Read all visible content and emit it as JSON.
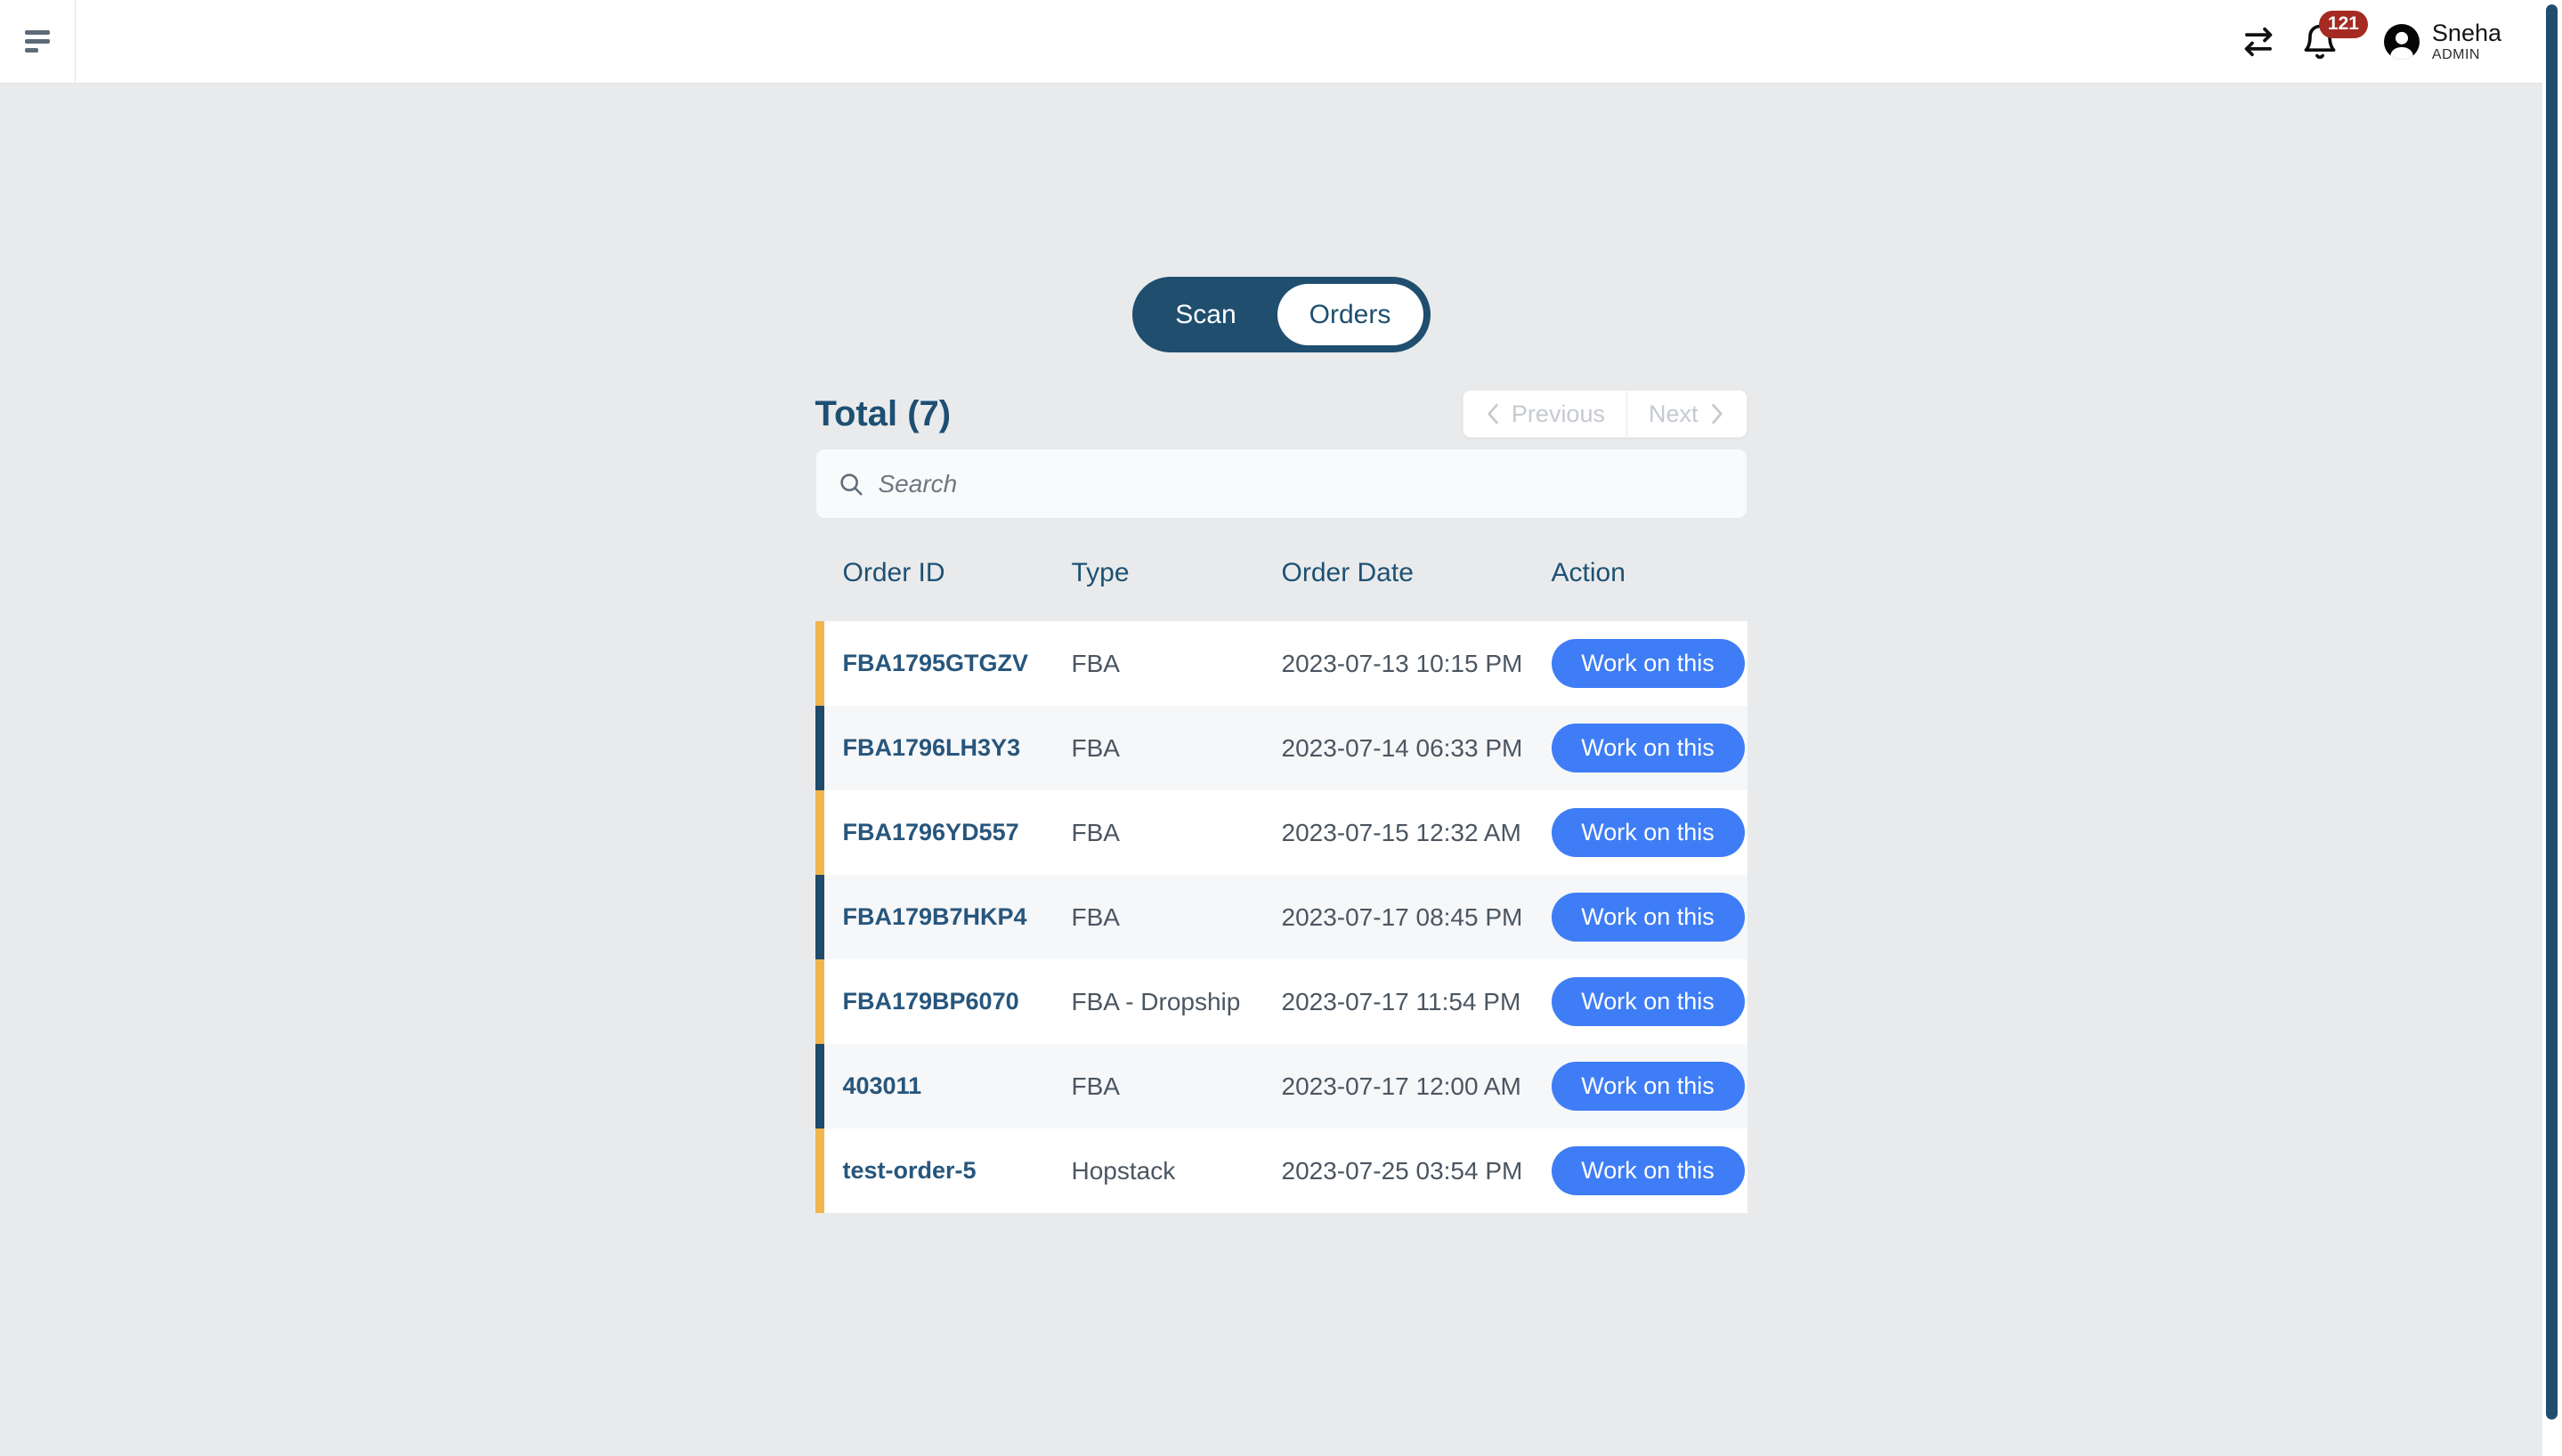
{
  "nav": {
    "user_name": "Sneha",
    "user_role": "ADMIN",
    "notification_count": "121"
  },
  "toggle": {
    "scan_label": "Scan",
    "orders_label": "Orders",
    "active": "Orders"
  },
  "summary": {
    "total_label": "Total (7)"
  },
  "pagination": {
    "previous_label": "Previous",
    "next_label": "Next"
  },
  "search": {
    "placeholder": "Search"
  },
  "table": {
    "columns": [
      "Order ID",
      "Type",
      "Order Date",
      "Action"
    ],
    "action_label": "Work on this",
    "rows": [
      {
        "order_id": "FBA1795GTGZV",
        "type": "FBA",
        "order_date": "2023-07-13 10:15 PM",
        "accent": "yellow"
      },
      {
        "order_id": "FBA1796LH3Y3",
        "type": "FBA",
        "order_date": "2023-07-14 06:33 PM",
        "accent": "navy"
      },
      {
        "order_id": "FBA1796YD557",
        "type": "FBA",
        "order_date": "2023-07-15 12:32 AM",
        "accent": "yellow"
      },
      {
        "order_id": "FBA179B7HKP4",
        "type": "FBA",
        "order_date": "2023-07-17 08:45 PM",
        "accent": "navy"
      },
      {
        "order_id": "FBA179BP6070",
        "type": "FBA - Dropship",
        "order_date": "2023-07-17 11:54 PM",
        "accent": "yellow"
      },
      {
        "order_id": "403011",
        "type": "FBA",
        "order_date": "2023-07-17 12:00 AM",
        "accent": "navy"
      },
      {
        "order_id": "test-order-5",
        "type": "Hopstack",
        "order_date": "2023-07-25 03:54 PM",
        "accent": "yellow"
      }
    ]
  },
  "icons": {
    "menu": "hamburger-icon",
    "transfer": "swap-arrows-icon",
    "notifications": "bell-icon",
    "user": "avatar-icon",
    "search": "search-icon",
    "previous": "chevron-left-icon",
    "next": "chevron-right-icon"
  },
  "colors": {
    "navy": "#1f4e6f",
    "order_id_text": "#27567c",
    "accent_yellow": "#f0b54d",
    "accent_navy": "#1f4a6a",
    "action_blue": "#3e7df6",
    "badge_red": "#a42a22",
    "page_background": "#e9eaeb"
  }
}
